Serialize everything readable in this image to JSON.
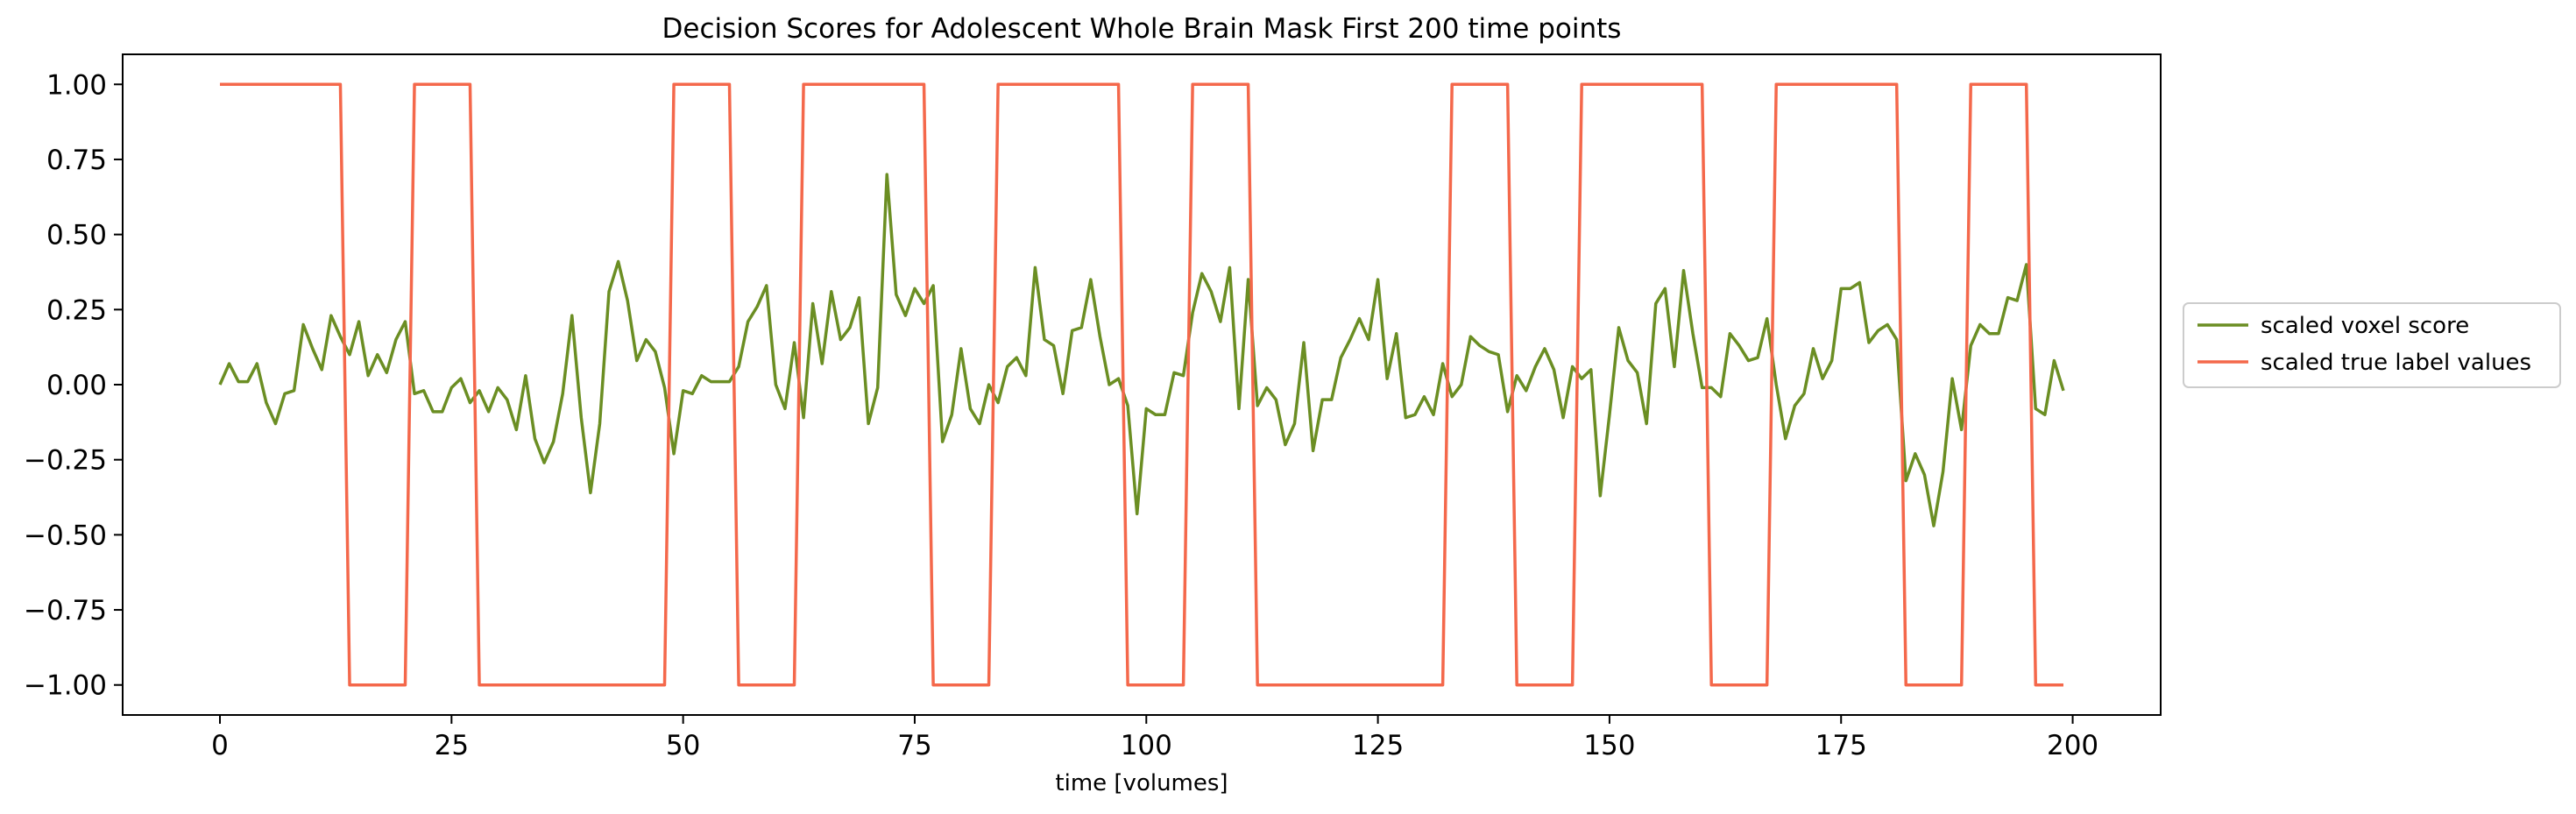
{
  "chart_data": {
    "type": "line",
    "title": "Decision Scores for Adolescent Whole Brain Mask First 200 time points",
    "xlabel": "time [volumes]",
    "ylabel": "",
    "xlim": [
      -10.5,
      209.5
    ],
    "ylim": [
      -1.1,
      1.1
    ],
    "x_ticks": [
      0,
      25,
      50,
      75,
      100,
      125,
      150,
      175,
      200
    ],
    "y_ticks": [
      -1.0,
      -0.75,
      -0.5,
      -0.25,
      0.0,
      0.25,
      0.5,
      0.75,
      1.0
    ],
    "x_tick_labels": [
      "0",
      "25",
      "50",
      "75",
      "100",
      "125",
      "150",
      "175",
      "200"
    ],
    "y_tick_labels": [
      "−1.00",
      "−0.75",
      "−0.50",
      "−0.25",
      "0.00",
      "0.25",
      "0.50",
      "0.75",
      "1.00"
    ],
    "legend_position": "right-outside",
    "series": [
      {
        "name": "scaled voxel score",
        "color": "#6b8e23",
        "x": [
          0,
          1,
          2,
          3,
          4,
          5,
          6,
          7,
          8,
          9,
          10,
          11,
          12,
          13,
          14,
          15,
          16,
          17,
          18,
          19,
          20,
          21,
          22,
          23,
          24,
          25,
          26,
          27,
          28,
          29,
          30,
          31,
          32,
          33,
          34,
          35,
          36,
          37,
          38,
          39,
          40,
          41,
          42,
          43,
          44,
          45,
          46,
          47,
          48,
          49,
          50,
          51,
          52,
          53,
          54,
          55,
          56,
          57,
          58,
          59,
          60,
          61,
          62,
          63,
          64,
          65,
          66,
          67,
          68,
          69,
          70,
          71,
          72,
          73,
          74,
          75,
          76,
          77,
          78,
          79,
          80,
          81,
          82,
          83,
          84,
          85,
          86,
          87,
          88,
          89,
          90,
          91,
          92,
          93,
          94,
          95,
          96,
          97,
          98,
          99,
          100,
          101,
          102,
          103,
          104,
          105,
          106,
          107,
          108,
          109,
          110,
          111,
          112,
          113,
          114,
          115,
          116,
          117,
          118,
          119,
          120,
          121,
          122,
          123,
          124,
          125,
          126,
          127,
          128,
          129,
          130,
          131,
          132,
          133,
          134,
          135,
          136,
          137,
          138,
          139,
          140,
          141,
          142,
          143,
          144,
          145,
          146,
          147,
          148,
          149,
          150,
          151,
          152,
          153,
          154,
          155,
          156,
          157,
          158,
          159,
          160,
          161,
          162,
          163,
          164,
          165,
          166,
          167,
          168,
          169,
          170,
          171,
          172,
          173,
          174,
          175,
          176,
          177,
          178,
          179,
          180,
          181,
          182,
          183,
          184,
          185,
          186,
          187,
          188,
          189,
          190,
          191,
          192,
          193,
          194,
          195,
          196,
          197,
          198,
          199
        ],
        "y": [
          0.0,
          0.07,
          0.01,
          0.01,
          0.07,
          -0.06,
          -0.13,
          -0.03,
          -0.02,
          0.2,
          0.12,
          0.05,
          0.23,
          0.16,
          0.1,
          0.21,
          0.03,
          0.1,
          0.04,
          0.15,
          0.21,
          -0.03,
          -0.02,
          -0.09,
          -0.09,
          -0.01,
          0.02,
          -0.06,
          -0.02,
          -0.09,
          -0.01,
          -0.05,
          -0.15,
          0.03,
          -0.18,
          -0.26,
          -0.19,
          -0.03,
          0.23,
          -0.11,
          -0.36,
          -0.13,
          0.31,
          0.41,
          0.28,
          0.08,
          0.15,
          0.11,
          -0.01,
          -0.23,
          -0.02,
          -0.03,
          0.03,
          0.01,
          0.01,
          0.01,
          0.06,
          0.21,
          0.26,
          0.33,
          0.0,
          -0.08,
          0.14,
          -0.11,
          0.27,
          0.07,
          0.31,
          0.15,
          0.19,
          0.29,
          -0.13,
          -0.01,
          0.7,
          0.3,
          0.23,
          0.32,
          0.27,
          0.33,
          -0.19,
          -0.1,
          0.12,
          -0.08,
          -0.13,
          0.0,
          -0.06,
          0.06,
          0.09,
          0.03,
          0.39,
          0.15,
          0.13,
          -0.03,
          0.18,
          0.19,
          0.35,
          0.16,
          0.0,
          0.02,
          -0.07,
          -0.43,
          -0.08,
          -0.1,
          -0.1,
          0.04,
          0.03,
          0.24,
          0.37,
          0.31,
          0.21,
          0.39,
          -0.08,
          0.35,
          -0.07,
          -0.01,
          -0.05,
          -0.2,
          -0.13,
          0.14,
          -0.22,
          -0.05,
          -0.05,
          0.09,
          0.15,
          0.22,
          0.15,
          0.35,
          0.02,
          0.17,
          -0.11,
          -0.1,
          -0.04,
          -0.1,
          0.07,
          -0.04,
          0.0,
          0.16,
          0.13,
          0.11,
          0.1,
          -0.09,
          0.03,
          -0.02,
          0.06,
          0.12,
          0.05,
          -0.11,
          0.06,
          0.02,
          0.05,
          -0.37,
          -0.1,
          0.19,
          0.08,
          0.04,
          -0.13,
          0.27,
          0.32,
          0.06,
          0.38,
          0.17,
          -0.01,
          -0.01,
          -0.04,
          0.17,
          0.13,
          0.08,
          0.09,
          0.22,
          0.0,
          -0.18,
          -0.07,
          -0.03,
          0.12,
          0.02,
          0.08,
          0.32,
          0.32,
          0.34,
          0.14,
          0.18,
          0.2,
          0.15,
          -0.32,
          -0.23,
          -0.3,
          -0.47,
          -0.29,
          0.02,
          -0.15,
          0.13,
          0.2,
          0.17,
          0.17,
          0.29,
          0.28,
          0.4,
          -0.08,
          -0.1,
          0.08,
          -0.02
        ]
      },
      {
        "name": "scaled true label values",
        "color": "#f4684b",
        "x": [
          0,
          13,
          14,
          20,
          21,
          27,
          28,
          48,
          49,
          55,
          56,
          62,
          63,
          76,
          77,
          83,
          84,
          97,
          98,
          104,
          105,
          111,
          112,
          132,
          133,
          139,
          140,
          146,
          147,
          160,
          161,
          167,
          168,
          181,
          182,
          188,
          189,
          195,
          196,
          199
        ],
        "y": [
          1,
          1,
          -1,
          -1,
          1,
          1,
          -1,
          -1,
          1,
          1,
          -1,
          -1,
          1,
          1,
          -1,
          -1,
          1,
          1,
          -1,
          -1,
          1,
          1,
          -1,
          -1,
          1,
          1,
          -1,
          -1,
          1,
          1,
          -1,
          -1,
          1,
          1,
          -1,
          -1,
          1,
          1,
          -1,
          -1
        ]
      }
    ]
  }
}
